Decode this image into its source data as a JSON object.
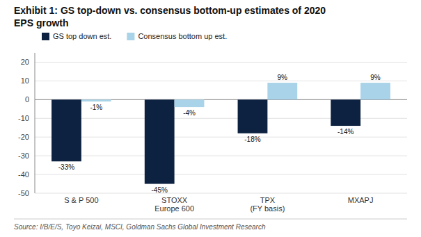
{
  "chart_data": {
    "type": "bar",
    "title": "Exhibit 1: GS top-down vs. consensus bottom-up estimates of 2020\nEPS growth",
    "categories": [
      "S & P 500",
      "STOXX\nEurope 600",
      "TPX\n(FY basis)",
      "MXAPJ"
    ],
    "series": [
      {
        "name": "GS top down est.",
        "color": "#0d2240",
        "values": [
          -33,
          -45,
          -18,
          -14
        ],
        "value_labels": [
          "-33%",
          "-45%",
          "-18%",
          "-14%"
        ]
      },
      {
        "name": "Consensus bottom up est.",
        "color": "#a8d3e8",
        "values": [
          -1,
          -4,
          9,
          9
        ],
        "value_labels": [
          "-1%",
          "-4%",
          "9%",
          "9%"
        ]
      }
    ],
    "ylim": [
      -50,
      25
    ],
    "yticks": [
      -50,
      -40,
      -30,
      -20,
      -10,
      0,
      10,
      20
    ],
    "grid": true,
    "legend": "upper left",
    "data_labels": true,
    "annotations": [
      "Source: I/B/E/S, Toyo Keizai, MSCI, Goldman Sachs Global Investment Research"
    ]
  }
}
